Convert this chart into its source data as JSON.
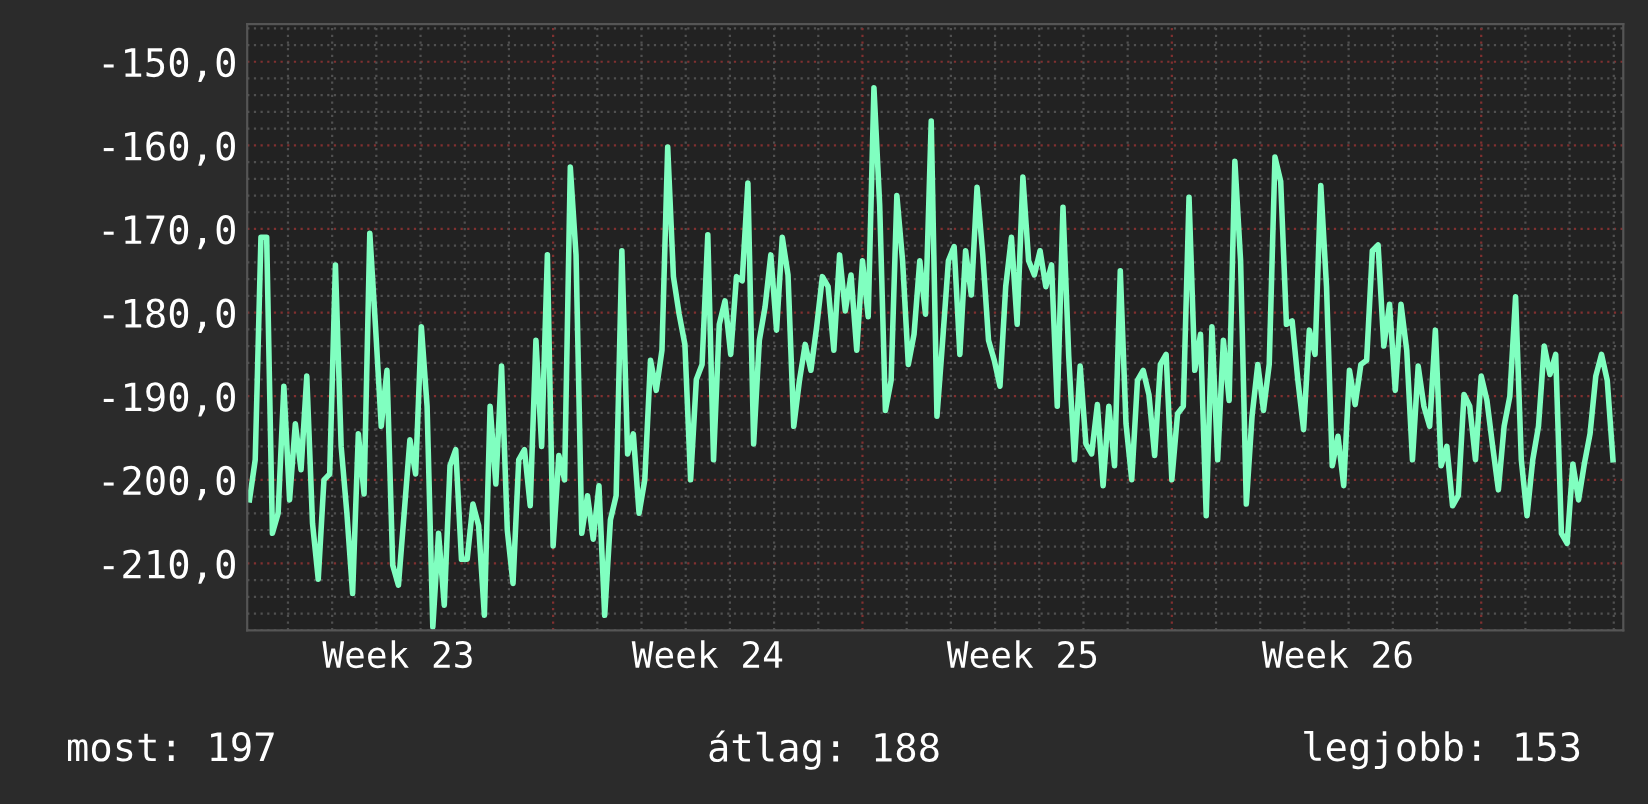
{
  "chart_data": {
    "type": "line",
    "categories": [
      null,
      null,
      null,
      null,
      null,
      null,
      null,
      null,
      null,
      null,
      null,
      null,
      null,
      null,
      null,
      null,
      null,
      null,
      null,
      null,
      null,
      null,
      null,
      null,
      null,
      null,
      "Week 23",
      null,
      null,
      null,
      null,
      null,
      null,
      null,
      null,
      null,
      null,
      null,
      null,
      null,
      null,
      null,
      null,
      null,
      null,
      null,
      null,
      null,
      null,
      null,
      null,
      null,
      null,
      null,
      null,
      null,
      null,
      null,
      null,
      null,
      null,
      null,
      null,
      null,
      null,
      null,
      null,
      null,
      null,
      null,
      null,
      null,
      null,
      null,
      null,
      null,
      null,
      null,
      null,
      null,
      "Week 24",
      null,
      null,
      null,
      null,
      null,
      null,
      null,
      null,
      null,
      null,
      null,
      null,
      null,
      null,
      null,
      null,
      null,
      null,
      null,
      null,
      null,
      null,
      null,
      null,
      null,
      null,
      null,
      null,
      null,
      null,
      null,
      null,
      null,
      null,
      null,
      null,
      null,
      null,
      null,
      null,
      null,
      null,
      null,
      null,
      null,
      null,
      null,
      null,
      null,
      null,
      null,
      null,
      null,
      null,
      "Week 25",
      null,
      null,
      null,
      null,
      null,
      null,
      null,
      null,
      null,
      null,
      null,
      null,
      null,
      null,
      null,
      null,
      null,
      null,
      null,
      null,
      null,
      null,
      null,
      null,
      null,
      null,
      null,
      null,
      null,
      null,
      null,
      null,
      null,
      null,
      null,
      null,
      null,
      null,
      null,
      null,
      null,
      null,
      null,
      null,
      null,
      null,
      null,
      null,
      null,
      null,
      null,
      null,
      null,
      null,
      "Week 26",
      null,
      null,
      null,
      null,
      null,
      null,
      null,
      null,
      null,
      null,
      null,
      null,
      null,
      null,
      null,
      null,
      null,
      null,
      null,
      null,
      null,
      null,
      null,
      null,
      null,
      null,
      null,
      null,
      null,
      null,
      null,
      null,
      null,
      null,
      null,
      null,
      null,
      null,
      null,
      null,
      null,
      null,
      null,
      null,
      null,
      null,
      null,
      null
    ],
    "series": [
      {
        "color": "#80ffc0",
        "values": [
          -202.4,
          -197.6,
          -171.0,
          -171.0,
          -206.4,
          -204.0,
          -188.8,
          -202.4,
          -193.3,
          -198.8,
          -187.6,
          -205.2,
          -211.9,
          -200.0,
          -199.3,
          -174.3,
          -196.0,
          -204.0,
          -213.6,
          -194.5,
          -201.7,
          -170.5,
          -181.7,
          -193.6,
          -186.9,
          -210.2,
          -212.6,
          -204.0,
          -195.2,
          -199.3,
          -181.7,
          -191.2,
          -217.6,
          -206.4,
          -215.0,
          -198.3,
          -196.4,
          -209.5,
          -209.5,
          -202.9,
          -205.5,
          -216.2,
          -191.2,
          -200.5,
          -186.4,
          -206.0,
          -212.4,
          -197.6,
          -196.4,
          -203.1,
          -183.3,
          -196.0,
          -173.1,
          -207.9,
          -197.1,
          -200.0,
          -162.6,
          -173.1,
          -206.4,
          -201.9,
          -207.1,
          -200.7,
          -216.2,
          -204.8,
          -201.9,
          -172.6,
          -196.9,
          -194.5,
          -204.0,
          -200.0,
          -185.7,
          -189.3,
          -184.5,
          -160.2,
          -175.7,
          -180.2,
          -183.8,
          -200.0,
          -188.0,
          -186.2,
          -170.7,
          -197.6,
          -181.4,
          -178.6,
          -185.0,
          -175.7,
          -176.2,
          -164.5,
          -195.7,
          -183.3,
          -179.3,
          -173.1,
          -182.1,
          -171.0,
          -175.5,
          -193.6,
          -188.1,
          -183.8,
          -186.9,
          -181.7,
          -175.7,
          -176.9,
          -184.5,
          -173.1,
          -179.8,
          -175.5,
          -184.5,
          -173.8,
          -180.5,
          -153.1,
          -167.1,
          -191.7,
          -188.1,
          -166.0,
          -173.8,
          -186.2,
          -182.6,
          -173.8,
          -180.2,
          -157.1,
          -192.4,
          -183.3,
          -173.8,
          -172.1,
          -185.0,
          -172.6,
          -177.9,
          -165.0,
          -173.1,
          -183.3,
          -185.7,
          -188.8,
          -176.9,
          -171.0,
          -181.4,
          -163.8,
          -173.8,
          -175.5,
          -172.6,
          -176.9,
          -174.3,
          -191.2,
          -167.4,
          -185.2,
          -197.6,
          -186.4,
          -195.7,
          -196.9,
          -191.0,
          -200.7,
          -191.2,
          -198.3,
          -175.0,
          -193.3,
          -200.0,
          -188.1,
          -186.9,
          -189.8,
          -197.1,
          -186.2,
          -185.0,
          -200.0,
          -192.1,
          -191.2,
          -166.2,
          -186.9,
          -182.6,
          -204.3,
          -181.7,
          -197.6,
          -183.3,
          -190.5,
          -161.9,
          -173.8,
          -202.9,
          -192.4,
          -186.2,
          -191.7,
          -186.2,
          -161.4,
          -164.3,
          -181.4,
          -181.0,
          -188.1,
          -194.0,
          -182.1,
          -185.0,
          -164.8,
          -176.9,
          -198.3,
          -194.8,
          -200.7,
          -186.9,
          -191.0,
          -186.2,
          -185.7,
          -172.6,
          -171.9,
          -184.0,
          -179.0,
          -189.3,
          -179.0,
          -184.5,
          -197.6,
          -186.4,
          -191.2,
          -193.6,
          -182.1,
          -198.3,
          -196.0,
          -203.1,
          -201.9,
          -189.8,
          -191.2,
          -197.6,
          -187.6,
          -190.5,
          -196.0,
          -201.2,
          -193.6,
          -190.0,
          -178.1,
          -197.6,
          -204.3,
          -197.6,
          -193.6,
          -184.0,
          -187.4,
          -185.0,
          -206.4,
          -207.6,
          -198.1,
          -202.4,
          -198.1,
          -194.5,
          -187.6,
          -185.0,
          -188.1,
          -197.6
        ]
      }
    ],
    "ylim": [
      -218,
      -145.5
    ],
    "yticks": [
      {
        "value": -150,
        "label": "-150,0"
      },
      {
        "value": -160,
        "label": "-160,0"
      },
      {
        "value": -170,
        "label": "-170,0"
      },
      {
        "value": -180,
        "label": "-180,0"
      },
      {
        "value": -190,
        "label": "-190,0"
      },
      {
        "value": -200,
        "label": "-200,0"
      },
      {
        "value": -210,
        "label": "-210,0"
      }
    ],
    "grid": true,
    "legend": false,
    "marker": "none",
    "line_style": "solid",
    "annotations": [
      "most: 197",
      "átlag: 188",
      "legjobb: 153"
    ]
  }
}
